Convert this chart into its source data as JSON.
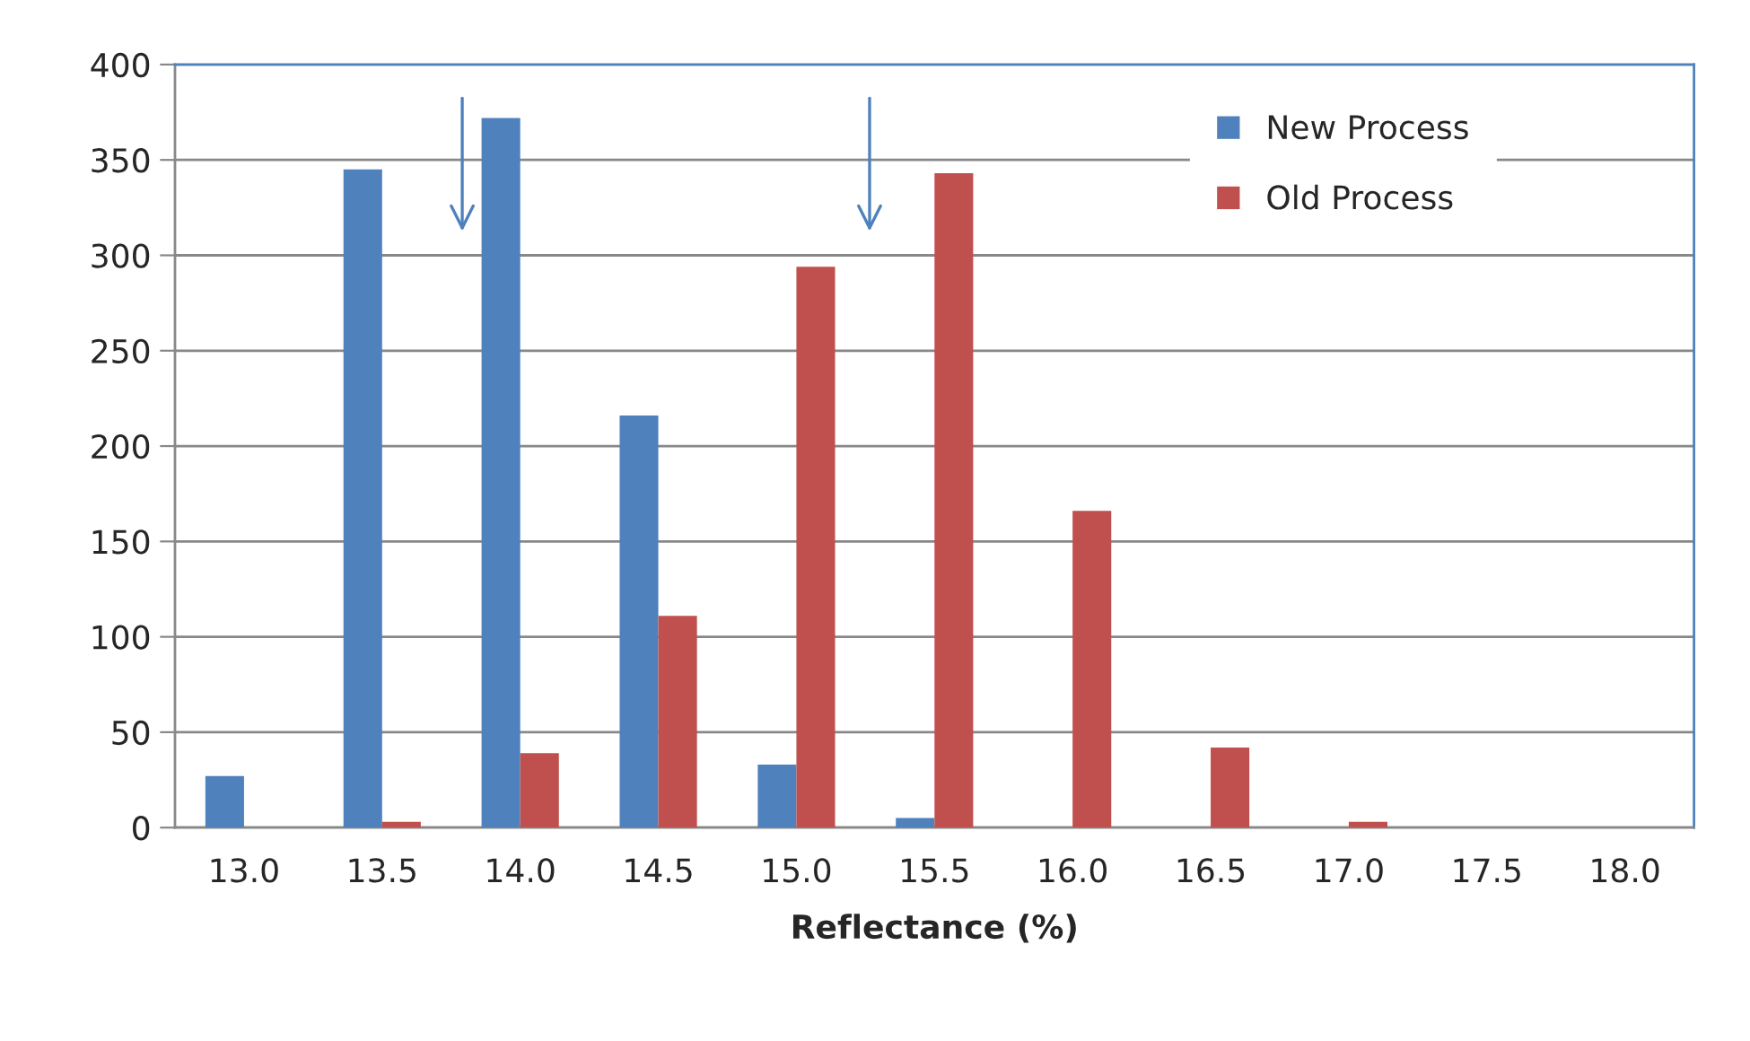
{
  "chart_data": {
    "type": "bar",
    "xlabel": "Reflectance (%)",
    "categories": [
      "13.0",
      "13.5",
      "14.0",
      "14.5",
      "15.0",
      "15.5",
      "16.0",
      "16.5",
      "17.0",
      "17.5",
      "18.0"
    ],
    "series": [
      {
        "name": "New Process",
        "color": "#4f81bd",
        "values": [
          27,
          345,
          372,
          216,
          33,
          5,
          0,
          0,
          0,
          0,
          0
        ]
      },
      {
        "name": "Old Process",
        "color": "#c0504d",
        "values": [
          0,
          3,
          39,
          111,
          294,
          343,
          166,
          42,
          3,
          0,
          0
        ]
      }
    ],
    "ylim": [
      0,
      400
    ],
    "yticks": [
      0,
      50,
      100,
      150,
      200,
      250,
      300,
      350,
      400
    ],
    "grid": "y",
    "legend": "top right"
  }
}
